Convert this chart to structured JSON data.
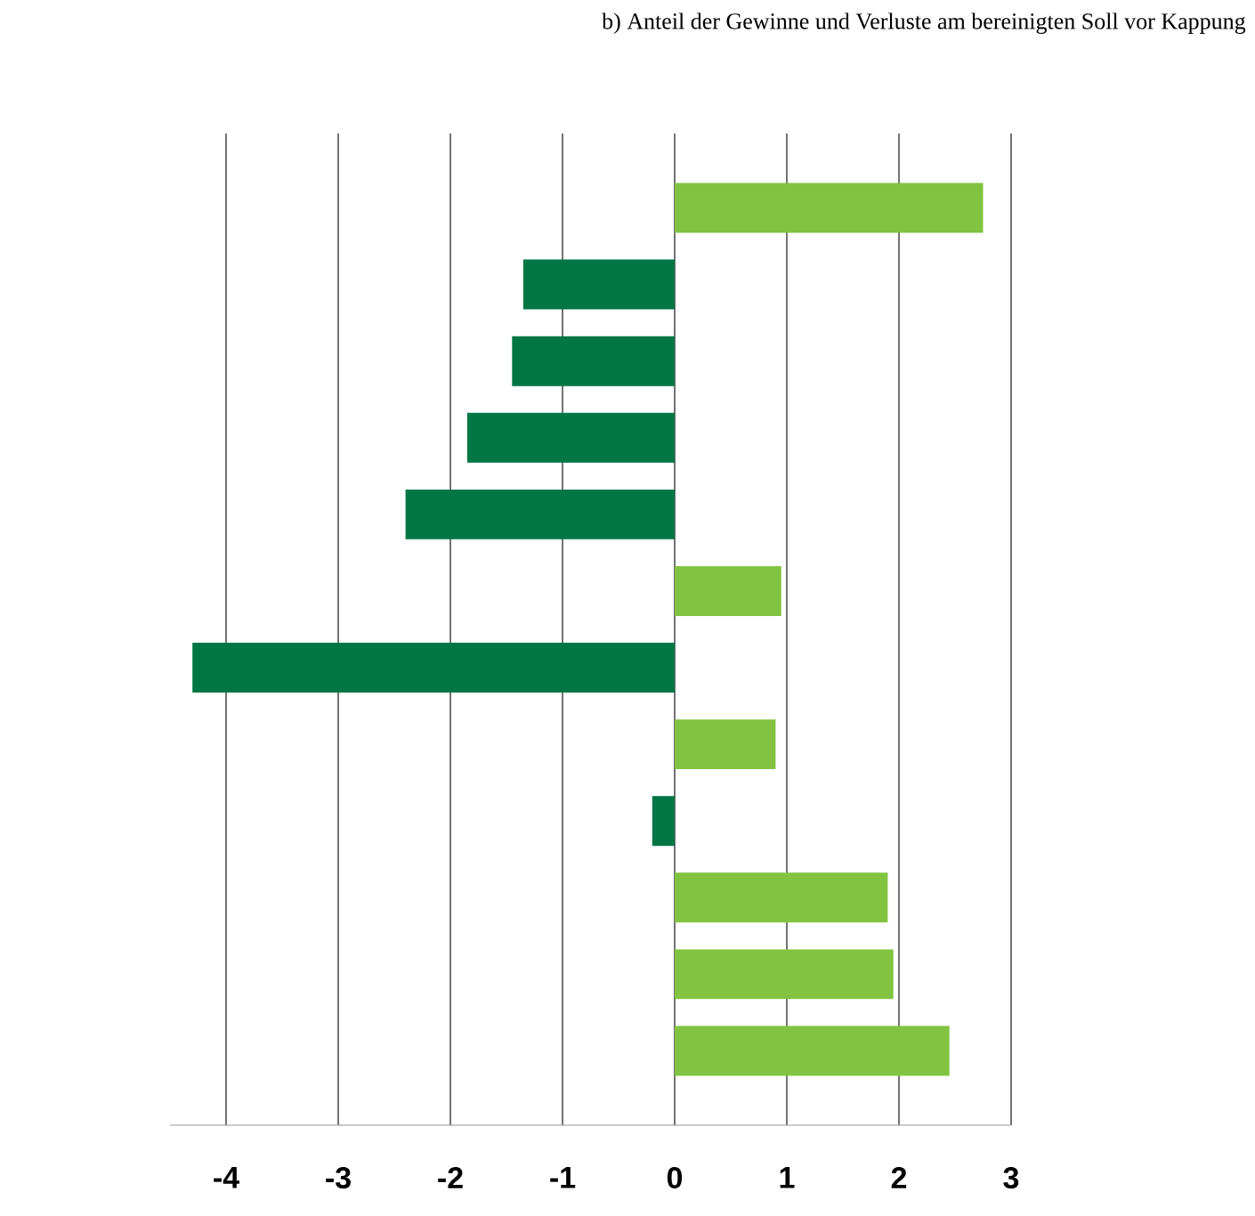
{
  "chart_data": {
    "type": "bar",
    "orientation": "horizontal",
    "title": "b) Anteil der Gewinne und Verluste am bereinigten Soll vor Kappung",
    "categories": [
      null,
      null,
      null,
      null,
      null,
      null,
      null,
      null,
      null,
      null,
      null,
      null
    ],
    "values": [
      2.75,
      -1.35,
      -1.45,
      -1.85,
      -2.4,
      0.95,
      -4.3,
      0.9,
      -0.2,
      1.9,
      1.95,
      2.45
    ],
    "colors": [
      "#82c341",
      "#007645",
      "#007645",
      "#007645",
      "#007645",
      "#82c341",
      "#007645",
      "#82c341",
      "#007645",
      "#82c341",
      "#82c341",
      "#82c341"
    ],
    "xlim": [
      -4.5,
      3
    ],
    "xticks": [
      -4,
      -3,
      -2,
      -1,
      0,
      1,
      2,
      3
    ],
    "grid": "x",
    "tick_labels": "x"
  }
}
